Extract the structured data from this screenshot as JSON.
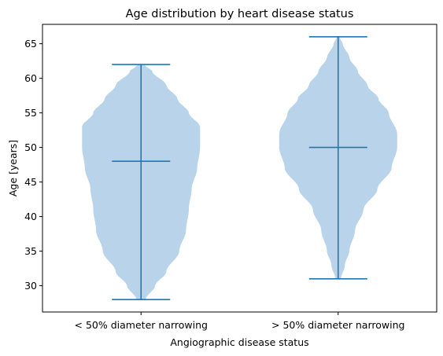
{
  "chart_data": {
    "type": "violin",
    "title": "Age distribution by heart disease status",
    "xlabel": "Angiographic disease status",
    "ylabel": "Age [years]",
    "categories": [
      "< 50% diameter narrowing",
      "> 50% diameter narrowing"
    ],
    "ylim": [
      26.2,
      67.8
    ],
    "yticks": [
      30,
      35,
      40,
      45,
      50,
      55,
      60,
      65
    ],
    "grid": false,
    "colors": {
      "body": "#b9d4ea",
      "lines": "#1f77b4"
    },
    "violins": [
      {
        "category": "< 50% diameter narrowing",
        "min": 28,
        "max": 62,
        "median": 48,
        "density": [
          [
            28,
            0.08
          ],
          [
            30,
            0.25
          ],
          [
            32,
            0.45
          ],
          [
            35,
            0.68
          ],
          [
            38,
            0.8
          ],
          [
            41,
            0.85
          ],
          [
            44,
            0.9
          ],
          [
            47,
            1.0
          ],
          [
            50,
            1.05
          ],
          [
            53,
            1.05
          ],
          [
            55,
            0.85
          ],
          [
            57,
            0.65
          ],
          [
            59,
            0.45
          ],
          [
            61,
            0.2
          ],
          [
            62,
            0.05
          ]
        ]
      },
      {
        "category": "> 50% diameter narrowing",
        "min": 31,
        "max": 66,
        "median": 50,
        "density": [
          [
            31,
            0.05
          ],
          [
            33,
            0.12
          ],
          [
            35,
            0.2
          ],
          [
            38,
            0.3
          ],
          [
            41,
            0.45
          ],
          [
            44,
            0.7
          ],
          [
            47,
            0.95
          ],
          [
            50,
            1.05
          ],
          [
            52,
            1.05
          ],
          [
            55,
            0.9
          ],
          [
            57,
            0.72
          ],
          [
            59,
            0.52
          ],
          [
            61,
            0.35
          ],
          [
            63,
            0.2
          ],
          [
            65,
            0.08
          ],
          [
            66,
            0.02
          ]
        ]
      }
    ]
  }
}
